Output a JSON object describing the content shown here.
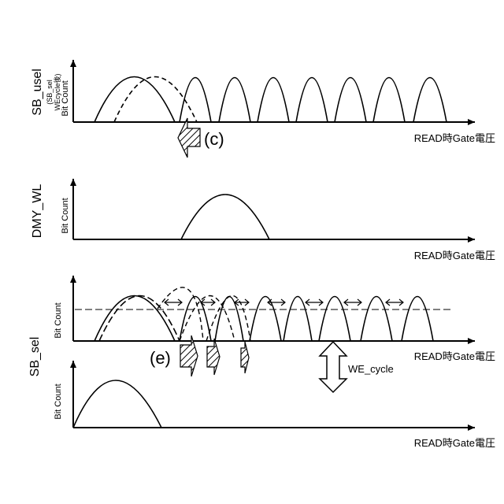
{
  "panels": [
    {
      "id": "sb-usel",
      "ylabel_main": "SB_usel",
      "ylabel_sub1": "(SB_sel",
      "ylabel_sub2": "WEcycle後)",
      "ylabel_count": "Bit Count",
      "xlabel": "READ時Gate電圧",
      "marker": "(c)"
    },
    {
      "id": "dmy-wl",
      "ylabel_main": "DMY_WL",
      "ylabel_count": "Bit Count",
      "xlabel": "READ時Gate電圧"
    },
    {
      "id": "sb-sel-upper",
      "ylabel_count": "Bit Count",
      "xlabel": "READ時Gate電圧",
      "marker": "(e)",
      "annotation": "WE_cycle"
    },
    {
      "id": "sb-sel-lower",
      "ylabel_count": "Bit Count",
      "xlabel": "READ時Gate電圧"
    }
  ],
  "group_label": "SB_sel"
}
